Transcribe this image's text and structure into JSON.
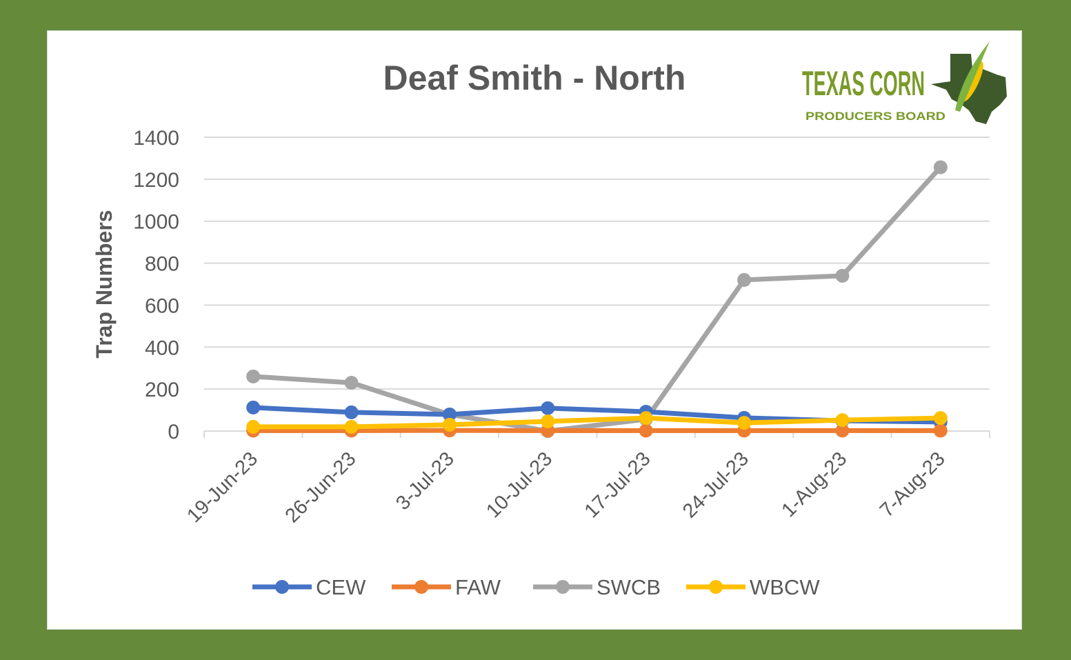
{
  "logo": {
    "line1": "TEXAS CORN",
    "line2": "PRODUCERS BOARD"
  },
  "chart_data": {
    "type": "line",
    "title": "Deaf Smith - North",
    "xlabel": "",
    "ylabel": "Trap Numbers",
    "ylim": [
      0,
      1400
    ],
    "yticks": [
      0,
      200,
      400,
      600,
      800,
      1000,
      1200,
      1400
    ],
    "grid": true,
    "legend_position": "bottom",
    "categories": [
      "19-Jun-23",
      "26-Jun-23",
      "3-Jul-23",
      "10-Jul-23",
      "17-Jul-23",
      "24-Jul-23",
      "1-Aug-23",
      "7-Aug-23"
    ],
    "series": [
      {
        "name": "CEW",
        "color": "#4472c4",
        "values": [
          112,
          89,
          79,
          109,
          92,
          63,
          49,
          43
        ]
      },
      {
        "name": "FAW",
        "color": "#ed7d31",
        "values": [
          2,
          2,
          3,
          2,
          2,
          2,
          2,
          2
        ]
      },
      {
        "name": "SWCB",
        "color": "#a5a5a5",
        "values": [
          260,
          230,
          79,
          0,
          56,
          720,
          740,
          1257
        ]
      },
      {
        "name": "WBCW",
        "color": "#ffc000",
        "values": [
          20,
          20,
          30,
          46,
          62,
          39,
          52,
          62
        ]
      }
    ]
  }
}
